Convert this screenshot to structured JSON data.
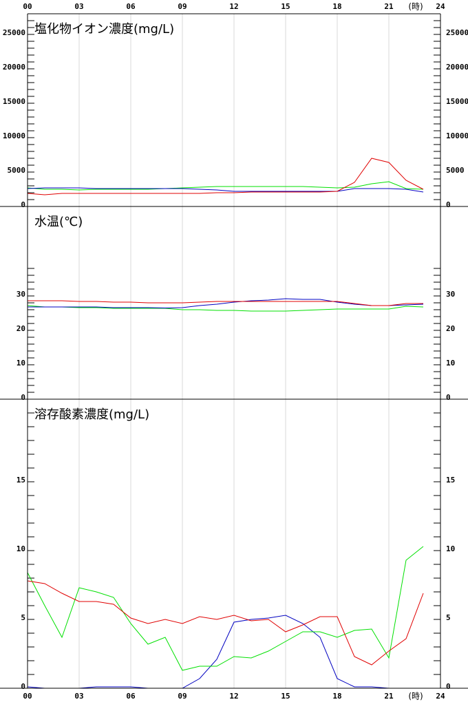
{
  "chart_data": [
    {
      "type": "line",
      "title": "塩化物イオン濃度(mg/L)",
      "xlim": [
        0,
        24
      ],
      "xticks": [
        {
          "value": 0,
          "label": "00"
        },
        {
          "value": 3,
          "label": "03"
        },
        {
          "value": 6,
          "label": "06"
        },
        {
          "value": 9,
          "label": "09"
        },
        {
          "value": 12,
          "label": "12"
        },
        {
          "value": 15,
          "label": "15"
        },
        {
          "value": 18,
          "label": "18"
        },
        {
          "value": 21,
          "label": "21"
        },
        {
          "value": 24,
          "label": "24"
        }
      ],
      "x_unit": "(時)",
      "ylim": [
        0,
        28000
      ],
      "yticks": [
        0,
        5000,
        10000,
        15000,
        20000,
        25000
      ],
      "minor_yticks": [
        1000,
        2000,
        3000,
        4000,
        6000,
        7000,
        8000,
        9000,
        11000,
        12000,
        13000,
        14000,
        16000,
        17000,
        18000,
        19000,
        21000,
        22000,
        23000,
        24000,
        26000,
        27000
      ],
      "grid": true,
      "x": [
        0,
        1,
        2,
        3,
        4,
        5,
        6,
        7,
        8,
        9,
        10,
        11,
        12,
        13,
        14,
        15,
        16,
        17,
        18,
        19,
        20,
        21,
        22,
        23
      ],
      "series": [
        {
          "color": "#00e000",
          "values": [
            2700,
            2500,
            2500,
            2400,
            2500,
            2500,
            2500,
            2500,
            2600,
            2700,
            2800,
            2900,
            2900,
            2900,
            2900,
            2900,
            2900,
            2800,
            2700,
            2800,
            3300,
            3600,
            2600,
            2500
          ]
        },
        {
          "color": "#0000c0",
          "values": [
            2600,
            2700,
            2700,
            2700,
            2600,
            2600,
            2600,
            2600,
            2600,
            2600,
            2500,
            2400,
            2200,
            2200,
            2200,
            2200,
            2200,
            2200,
            2200,
            2600,
            2600,
            2600,
            2500,
            2100
          ]
        },
        {
          "color": "#e00000",
          "values": [
            1900,
            1700,
            1900,
            1900,
            1900,
            1900,
            1900,
            1900,
            1900,
            1900,
            1900,
            2000,
            2000,
            2100,
            2100,
            2100,
            2100,
            2100,
            2200,
            3500,
            7000,
            6400,
            3800,
            2500
          ]
        }
      ]
    },
    {
      "type": "line",
      "title": "水温(℃)",
      "xlim": [
        0,
        24
      ],
      "xticks": [
        {
          "value": 0,
          "label": "00"
        },
        {
          "value": 3,
          "label": "03"
        },
        {
          "value": 6,
          "label": "06"
        },
        {
          "value": 9,
          "label": "09"
        },
        {
          "value": 12,
          "label": "12"
        },
        {
          "value": 15,
          "label": "15"
        },
        {
          "value": 18,
          "label": "18"
        },
        {
          "value": 21,
          "label": "21"
        },
        {
          "value": 24,
          "label": "24"
        }
      ],
      "ylim": [
        0,
        56
      ],
      "yticks": [
        0,
        10,
        20,
        30
      ],
      "minor_yticks": [
        2,
        4,
        6,
        8,
        12,
        14,
        16,
        18,
        22,
        24,
        26,
        28,
        32,
        34,
        36,
        38
      ],
      "grid": true,
      "x": [
        0,
        1,
        2,
        3,
        4,
        5,
        6,
        7,
        8,
        9,
        10,
        11,
        12,
        13,
        14,
        15,
        16,
        17,
        18,
        19,
        20,
        21,
        22,
        23
      ],
      "series": [
        {
          "color": "#00e000",
          "values": [
            27.2,
            26.8,
            26.8,
            26.6,
            26.6,
            26.4,
            26.4,
            26.4,
            26.4,
            26.0,
            26.0,
            25.8,
            25.8,
            25.6,
            25.6,
            25.6,
            25.8,
            26.0,
            26.2,
            26.2,
            26.2,
            26.2,
            27.0,
            26.8
          ]
        },
        {
          "color": "#0000c0",
          "values": [
            26.8,
            26.8,
            26.8,
            26.8,
            26.8,
            26.6,
            26.6,
            26.6,
            26.5,
            26.6,
            27.2,
            27.6,
            28.2,
            28.6,
            28.8,
            29.2,
            29.0,
            29.0,
            28.2,
            27.6,
            27.2,
            27.2,
            27.4,
            27.6
          ]
        },
        {
          "color": "#e00000",
          "values": [
            28.6,
            28.6,
            28.6,
            28.4,
            28.4,
            28.2,
            28.2,
            28.0,
            28.0,
            28.0,
            28.2,
            28.4,
            28.4,
            28.4,
            28.4,
            28.4,
            28.4,
            28.4,
            28.4,
            27.8,
            27.2,
            27.2,
            27.8,
            27.8
          ]
        }
      ]
    },
    {
      "type": "line",
      "title": "溶存酸素濃度(mg/L)",
      "xlim": [
        0,
        24
      ],
      "xticks": [
        {
          "value": 0,
          "label": "00"
        },
        {
          "value": 3,
          "label": "03"
        },
        {
          "value": 6,
          "label": "06"
        },
        {
          "value": 9,
          "label": "09"
        },
        {
          "value": 12,
          "label": "12"
        },
        {
          "value": 15,
          "label": "15"
        },
        {
          "value": 18,
          "label": "18"
        },
        {
          "value": 21,
          "label": "21"
        },
        {
          "value": 24,
          "label": "24"
        }
      ],
      "x_unit": "(時)",
      "ylim": [
        0,
        21
      ],
      "yticks": [
        0,
        5,
        10,
        15
      ],
      "minor_yticks": [
        1,
        2,
        3,
        4,
        6,
        7,
        8,
        9,
        11,
        12,
        13,
        14,
        16,
        17,
        18,
        19,
        20
      ],
      "grid": true,
      "x": [
        0,
        1,
        2,
        3,
        4,
        5,
        6,
        7,
        8,
        9,
        10,
        11,
        12,
        13,
        14,
        15,
        16,
        17,
        18,
        19,
        20,
        21,
        22,
        23
      ],
      "series": [
        {
          "color": "#0000c0",
          "values": [
            0.1,
            0,
            0,
            0,
            0.1,
            0.1,
            0.1,
            0,
            0,
            0,
            0.7,
            2.1,
            4.8,
            5.0,
            5.1,
            5.3,
            4.7,
            3.7,
            0.7,
            0.1,
            0.1,
            0,
            0,
            0
          ]
        },
        {
          "color": "#00e000",
          "values": [
            8.4,
            6.0,
            3.7,
            7.3,
            7.0,
            6.6,
            4.7,
            3.2,
            3.7,
            1.3,
            1.6,
            1.6,
            2.3,
            2.2,
            2.7,
            3.4,
            4.1,
            4.1,
            3.7,
            4.2,
            4.3,
            2.2,
            9.3,
            10.3
          ]
        },
        {
          "color": "#e00000",
          "values": [
            7.8,
            7.6,
            6.9,
            6.3,
            6.3,
            6.1,
            5.1,
            4.7,
            5.0,
            4.7,
            5.2,
            5.0,
            5.3,
            4.9,
            5.0,
            4.1,
            4.6,
            5.2,
            5.2,
            2.3,
            1.7,
            2.7,
            3.6,
            6.9
          ]
        }
      ]
    }
  ]
}
